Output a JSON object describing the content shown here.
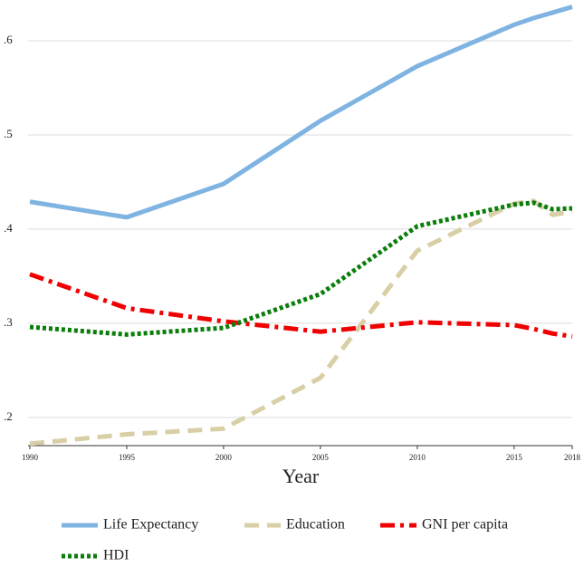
{
  "chart_data": {
    "type": "line",
    "x_label": "Year",
    "x": [
      1990,
      1995,
      2000,
      2005,
      2010,
      2015,
      2016,
      2017,
      2018
    ],
    "xlim": [
      1990,
      2018
    ],
    "xticks": [
      1990,
      1995,
      2000,
      2005,
      2010,
      2015,
      2018
    ],
    "ylim": [
      0.17,
      0.64
    ],
    "yticks": [
      {
        "value": 0.2,
        "label": ".2"
      },
      {
        "value": 0.3,
        "label": ".3"
      },
      {
        "value": 0.4,
        "label": ".4"
      },
      {
        "value": 0.5,
        "label": ".5"
      },
      {
        "value": 0.6,
        "label": ".6"
      }
    ],
    "grid": true,
    "series": [
      {
        "name": "Life Expectancy",
        "color": "#7fb4e2",
        "style": "solid",
        "values": [
          0.429,
          0.4125,
          0.448,
          0.515,
          0.573,
          0.617,
          0.624,
          0.63,
          0.636
        ]
      },
      {
        "name": "Education",
        "color": "#d8cfa6",
        "style": "dash",
        "values": [
          0.172,
          0.182,
          0.188,
          0.242,
          0.377,
          0.427,
          0.43,
          0.415,
          0.419
        ]
      },
      {
        "name": "GNI per capita",
        "color": "#f00000",
        "style": "dashdot",
        "values": [
          0.352,
          0.316,
          0.302,
          0.291,
          0.301,
          0.298,
          0.294,
          0.289,
          0.286
        ]
      },
      {
        "name": "HDI",
        "color": "#0a7d0a",
        "style": "dot",
        "values": [
          0.296,
          0.288,
          0.295,
          0.331,
          0.403,
          0.426,
          0.428,
          0.421,
          0.422
        ]
      }
    ]
  }
}
